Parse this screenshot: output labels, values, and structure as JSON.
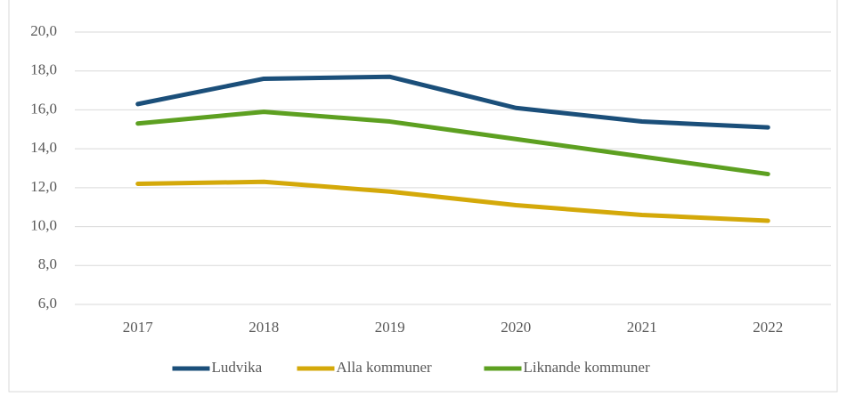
{
  "chart_data": {
    "type": "line",
    "categories": [
      "2017",
      "2018",
      "2019",
      "2020",
      "2021",
      "2022"
    ],
    "series": [
      {
        "name": "Ludvika",
        "color": "#1b4f7a",
        "values": [
          16.3,
          17.6,
          17.7,
          16.1,
          15.4,
          15.1
        ]
      },
      {
        "name": "Alla kommuner",
        "color": "#d4a90a",
        "values": [
          12.2,
          12.3,
          11.8,
          11.1,
          10.6,
          10.3
        ]
      },
      {
        "name": "Liknande kommuner",
        "color": "#5da021",
        "values": [
          15.3,
          15.9,
          15.4,
          14.5,
          13.6,
          12.7
        ]
      }
    ],
    "ylim": [
      6,
      20
    ],
    "yticks": [
      {
        "value": 6,
        "label": "6,0"
      },
      {
        "value": 8,
        "label": "8,0"
      },
      {
        "value": 10,
        "label": "10,0"
      },
      {
        "value": 12,
        "label": "12,0"
      },
      {
        "value": 14,
        "label": "14,0"
      },
      {
        "value": 16,
        "label": "16,0"
      },
      {
        "value": 18,
        "label": "18,0"
      },
      {
        "value": 20,
        "label": "20,0"
      }
    ],
    "grid": true,
    "legend": "bottom"
  }
}
